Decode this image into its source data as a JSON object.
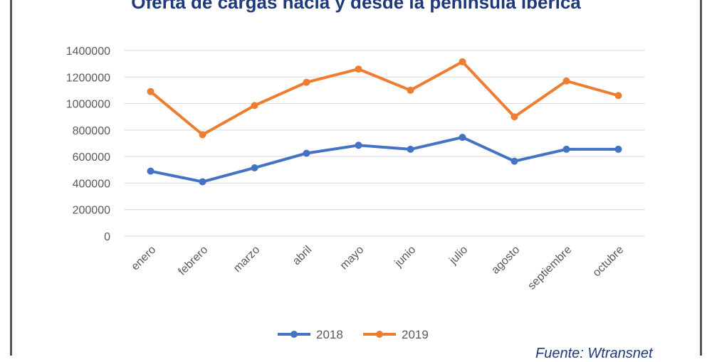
{
  "chart_data": {
    "type": "line",
    "title": "Oferta de cargas hacia y desde la península ibérica",
    "source": "Fuente: Wtransnet",
    "categories": [
      "enero",
      "febrero",
      "marzo",
      "abril",
      "mayo",
      "junio",
      "julio",
      "agosto",
      "septiembre",
      "octubre"
    ],
    "ylim": [
      0,
      1400000
    ],
    "yticks": [
      "0",
      "200000",
      "400000",
      "600000",
      "800000",
      "1000000",
      "1200000",
      "1400000"
    ],
    "grid": true,
    "legend": "bottom",
    "series": [
      {
        "name": "2018",
        "color": "#4472C4",
        "values": [
          490000,
          410000,
          515000,
          625000,
          685000,
          655000,
          745000,
          565000,
          655000,
          655000
        ]
      },
      {
        "name": "2019",
        "color": "#ED7D31",
        "values": [
          1090000,
          765000,
          985000,
          1160000,
          1260000,
          1100000,
          1315000,
          900000,
          1170000,
          1060000
        ]
      }
    ]
  }
}
